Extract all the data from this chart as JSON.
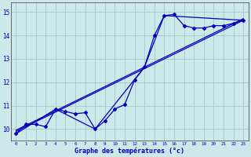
{
  "xlabel": "Graphe des températures (°c)",
  "bg_color": "#cce8e8",
  "grid_color": "#aacccc",
  "line_color": "#0000bb",
  "axis_color": "#555555",
  "xlim": [
    -0.5,
    23.5
  ],
  "ylim": [
    9.5,
    15.4
  ],
  "yticks": [
    10,
    11,
    12,
    13,
    14,
    15
  ],
  "xticks": [
    0,
    1,
    2,
    3,
    4,
    5,
    6,
    7,
    8,
    9,
    10,
    11,
    12,
    13,
    14,
    15,
    16,
    17,
    18,
    19,
    20,
    21,
    22,
    23
  ],
  "main_x": [
    0,
    1,
    2,
    3,
    4,
    5,
    6,
    7,
    8,
    9,
    10,
    11,
    12,
    13,
    14,
    15,
    16,
    17,
    18,
    19,
    20,
    21,
    22,
    23
  ],
  "main_y": [
    9.8,
    10.2,
    10.2,
    10.1,
    10.85,
    10.75,
    10.65,
    10.7,
    10.0,
    10.35,
    10.85,
    11.05,
    12.1,
    12.65,
    14.0,
    14.85,
    14.9,
    14.42,
    14.32,
    14.32,
    14.42,
    14.42,
    14.52,
    14.65
  ],
  "trend1_x": [
    0,
    23
  ],
  "trend1_y": [
    9.9,
    14.65
  ],
  "trend2_x": [
    0,
    23
  ],
  "trend2_y": [
    9.95,
    14.72
  ],
  "connect_x": [
    0,
    4,
    8,
    13,
    15,
    23
  ],
  "connect_y": [
    9.8,
    10.85,
    10.0,
    12.65,
    14.85,
    14.65
  ]
}
